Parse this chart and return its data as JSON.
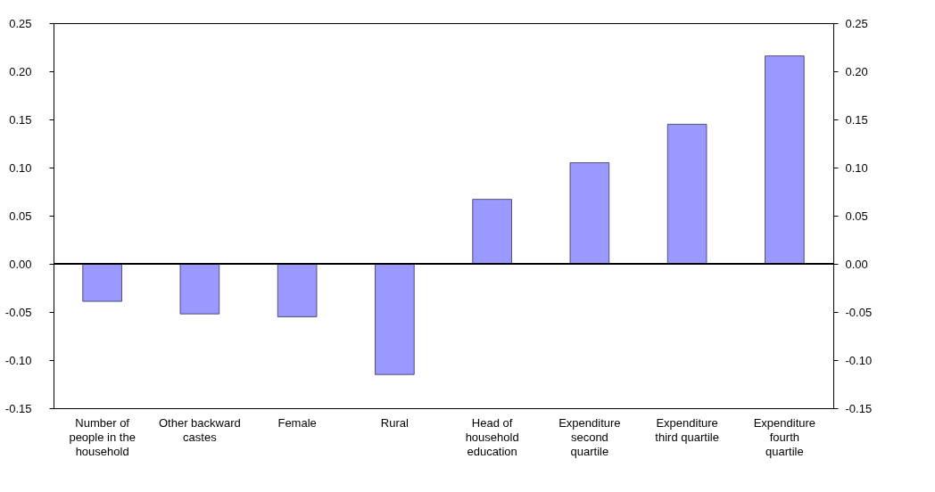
{
  "chart_data": {
    "type": "bar",
    "categories": [
      "Number of people in the household",
      "Other backward castes",
      "Female",
      "Rural",
      "Head of household education",
      "Expenditure second quartile",
      "Expenditure third quartile",
      "Expenditure fourth quartile"
    ],
    "series": [
      {
        "color": "#9999ff",
        "values": [
          -0.039,
          -0.052,
          -0.055,
          -0.115,
          0.067,
          0.105,
          0.145,
          0.216
        ]
      }
    ],
    "ylim": [
      -0.15,
      0.25
    ],
    "yticks": [
      {
        "value": -0.15,
        "label": "-0.15"
      },
      {
        "value": -0.1,
        "label": "-0.10"
      },
      {
        "value": -0.05,
        "label": "-0.05"
      },
      {
        "value": 0,
        "label": "0.00"
      },
      {
        "value": 0.05,
        "label": "0.05"
      },
      {
        "value": 0.1,
        "label": "0.10"
      },
      {
        "value": 0.15,
        "label": "0.15"
      },
      {
        "value": 0.2,
        "label": "0.20"
      },
      {
        "value": 0.25,
        "label": "0.25"
      }
    ],
    "y2lim": [
      -0.15,
      0.25
    ],
    "y2ticks": [
      {
        "value": -0.15,
        "label": "-0.15"
      },
      {
        "value": -0.1,
        "label": "-0.10"
      },
      {
        "value": -0.05,
        "label": "-0.05"
      },
      {
        "value": 0,
        "label": "0.00"
      },
      {
        "value": 0.05,
        "label": "0.05"
      },
      {
        "value": 0.1,
        "label": "0.10"
      },
      {
        "value": 0.15,
        "label": "0.15"
      },
      {
        "value": 0.2,
        "label": "0.20"
      },
      {
        "value": 0.25,
        "label": "0.25"
      }
    ],
    "ref_lines": [
      {
        "axis": "y2",
        "value": 0,
        "color": "#000000"
      }
    ],
    "grid": false
  }
}
